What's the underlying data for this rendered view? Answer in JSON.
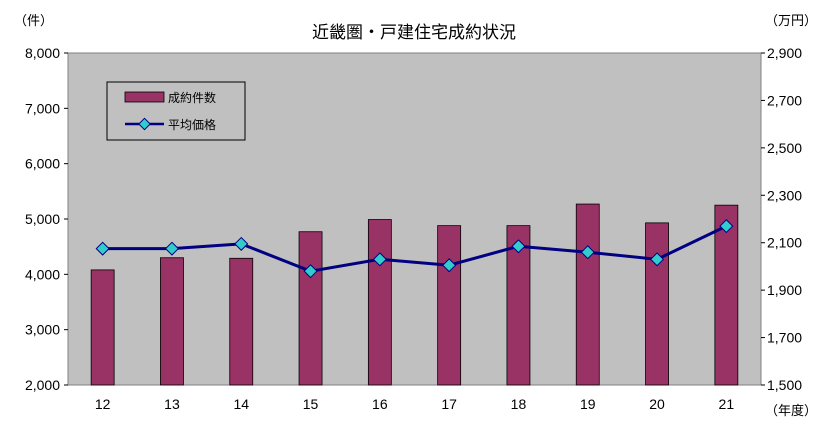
{
  "chart_data": {
    "type": "bar+line",
    "title": "近畿圏・戸建住宅成約状況",
    "left_unit": "（件）",
    "right_unit": "（万円）",
    "x_unit": "（年度）",
    "categories": [
      "12",
      "13",
      "14",
      "15",
      "16",
      "17",
      "18",
      "19",
      "20",
      "21"
    ],
    "series": [
      {
        "name": "成約件数",
        "type": "bar",
        "axis": "left",
        "values": [
          4080,
          4300,
          4290,
          4770,
          4990,
          4880,
          4880,
          5270,
          4930,
          5250
        ]
      },
      {
        "name": "平均価格",
        "type": "line",
        "axis": "right",
        "values": [
          2075,
          2075,
          2095,
          1980,
          2030,
          2005,
          2085,
          2060,
          2030,
          2170
        ]
      }
    ],
    "ylim_left": [
      2000,
      8000
    ],
    "yticks_left": [
      "2,000",
      "3,000",
      "4,000",
      "5,000",
      "6,000",
      "7,000",
      "8,000"
    ],
    "ylim_right": [
      1500,
      2900
    ],
    "yticks_right": [
      "1,500",
      "1,700",
      "1,900",
      "2,100",
      "2,300",
      "2,500",
      "2,700",
      "2,900"
    ],
    "legend_position": "top-left",
    "colors": {
      "bar": "#993366",
      "line": "#000080",
      "marker": "#33CCCC",
      "plot_bg": "#C0C0C0"
    }
  }
}
